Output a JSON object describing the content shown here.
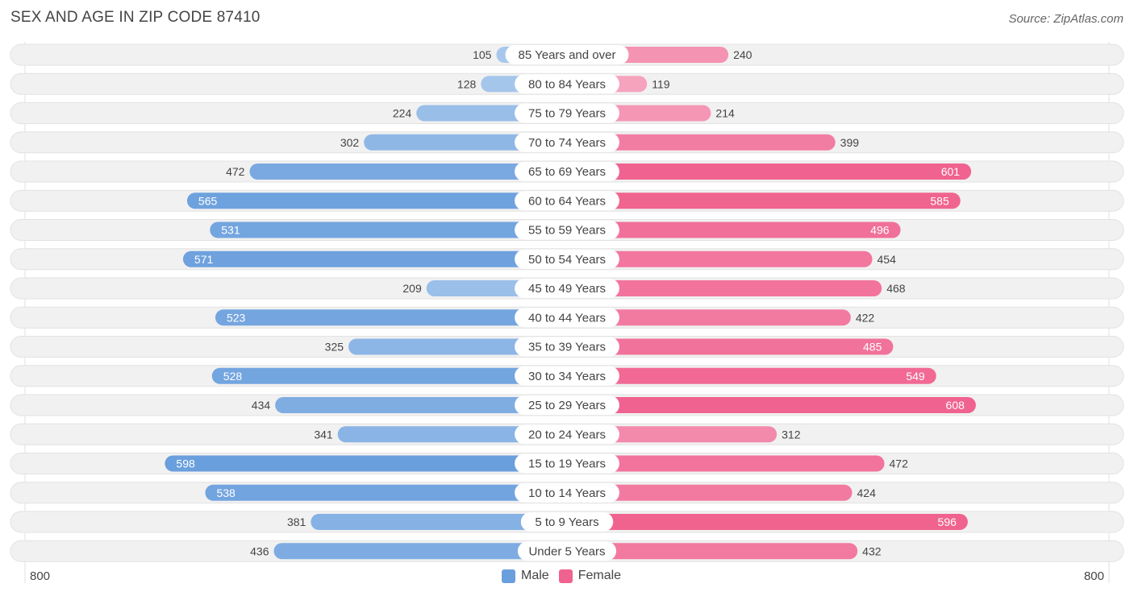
{
  "title": "SEX AND AGE IN ZIP CODE 87410",
  "source": "Source: ZipAtlas.com",
  "colors": {
    "male": "#6a9fdd",
    "male_light": "#a8c8ec",
    "female": "#f0628f",
    "female_light": "#f6a6c0",
    "row_bg": "#f1f1f1"
  },
  "legend": {
    "male": "Male",
    "female": "Female"
  },
  "axis": {
    "left_max_label": "800",
    "right_max_label": "800"
  },
  "chart_data": {
    "type": "bar",
    "orientation": "horizontal-diverging",
    "xlim": [
      0,
      800
    ],
    "categories": [
      "85 Years and over",
      "80 to 84 Years",
      "75 to 79 Years",
      "70 to 74 Years",
      "65 to 69 Years",
      "60 to 64 Years",
      "55 to 59 Years",
      "50 to 54 Years",
      "45 to 49 Years",
      "40 to 44 Years",
      "35 to 39 Years",
      "30 to 34 Years",
      "25 to 29 Years",
      "20 to 24 Years",
      "15 to 19 Years",
      "10 to 14 Years",
      "5 to 9 Years",
      "Under 5 Years"
    ],
    "series": [
      {
        "name": "Male",
        "values": [
          105,
          128,
          224,
          302,
          472,
          565,
          531,
          571,
          209,
          523,
          325,
          528,
          434,
          341,
          598,
          538,
          381,
          436
        ]
      },
      {
        "name": "Female",
        "values": [
          240,
          119,
          214,
          399,
          601,
          585,
          496,
          454,
          468,
          422,
          485,
          549,
          608,
          312,
          472,
          424,
          596,
          432
        ]
      }
    ]
  }
}
